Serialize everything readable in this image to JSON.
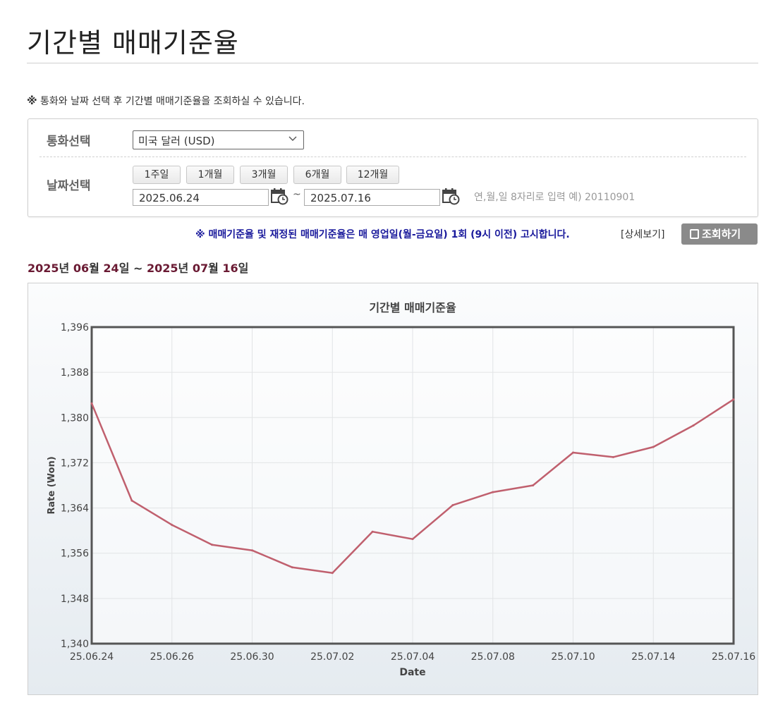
{
  "page": {
    "title": "기간별 매매기준율"
  },
  "notice": {
    "mark": "※",
    "text": "통화와 날짜 선택 후 기간별 매매기준율을 조회하실 수 있습니다."
  },
  "form": {
    "currency_label": "통화선택",
    "currency_value": "미국 달러 (USD)",
    "date_label": "날짜선택",
    "period_buttons": [
      "1주일",
      "1개월",
      "3개월",
      "6개월",
      "12개월"
    ],
    "start_date": "2025.06.24",
    "end_date": "2025.07.16",
    "tilde": "~",
    "date_hint": "연,월,일 8자리로 입력 예) 20110901"
  },
  "info": {
    "text": "※ 매매기준율 및 재정된 매매기준율은 매 영업일(월-금요일) 1회 (9시 이전) 고시합니다.",
    "detail_link": "[상세보기]",
    "query_button": "조회하기"
  },
  "range": {
    "start_year": "2025",
    "start_month": "06",
    "start_day": "24",
    "end_year": "2025",
    "end_month": "07",
    "end_day": "16",
    "year_unit": "년",
    "month_unit": "월",
    "day_unit": "일",
    "sep": "~"
  },
  "colors": {
    "line": "#c0606e",
    "range_number": "#6a1a33",
    "notice_blue": "#1a1a9c",
    "button_gray": "#8a8a8a"
  },
  "chart_data": {
    "type": "line",
    "title": "기간별 매매기준율",
    "xlabel": "Date",
    "ylabel": "Rate (Won)",
    "ylim": [
      1340,
      1396
    ],
    "yticks": [
      1340,
      1348,
      1356,
      1364,
      1372,
      1380,
      1388,
      1396
    ],
    "ytick_labels": [
      "1,340",
      "1,348",
      "1,356",
      "1,364",
      "1,372",
      "1,380",
      "1,388",
      "1,396"
    ],
    "x": [
      "25.06.24",
      "25.06.25",
      "25.06.26",
      "25.06.27",
      "25.06.30",
      "25.07.01",
      "25.07.02",
      "25.07.03",
      "25.07.04",
      "25.07.07",
      "25.07.08",
      "25.07.09",
      "25.07.10",
      "25.07.11",
      "25.07.14",
      "25.07.15",
      "25.07.16"
    ],
    "xtick_labels": [
      "25.06.24",
      "25.06.26",
      "25.06.30",
      "25.07.02",
      "25.07.04",
      "25.07.08",
      "25.07.10",
      "25.07.14",
      "25.07.16"
    ],
    "series": [
      {
        "values": [
          1382.5,
          1365.3,
          1361.0,
          1357.5,
          1356.5,
          1353.5,
          1352.5,
          1359.8,
          1358.5,
          1364.5,
          1366.8,
          1368.0,
          1373.8,
          1373.0,
          1374.8,
          1378.6,
          1383.2
        ]
      }
    ],
    "grid": true,
    "legend": "none"
  }
}
